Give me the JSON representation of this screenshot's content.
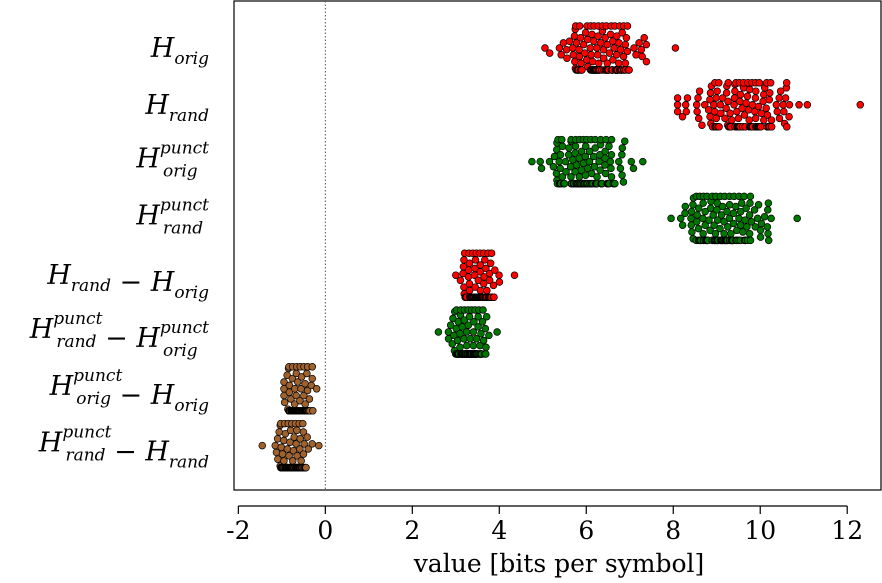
{
  "chart_data": {
    "type": "scatter",
    "subtype": "beeswarm",
    "orientation": "horizontal",
    "title": "",
    "xlabel": "value [bits per symbol]",
    "ylabel": "",
    "xlim": [
      -2.1,
      12.8
    ],
    "xticks": [
      -2,
      0,
      2,
      4,
      6,
      8,
      10,
      12
    ],
    "xtick_labels": [
      "-2",
      "0",
      "2",
      "4",
      "6",
      "8",
      "10",
      "12"
    ],
    "reference_line": {
      "x": 0,
      "style": "dotted",
      "color": "#555555"
    },
    "grid": false,
    "legend": "none",
    "series": [
      {
        "parts": [
          {
            "t": "H",
            "sub": "orig"
          }
        ],
        "color": "#ff0000",
        "center": 6.35,
        "spread": 0.45,
        "min": 5.05,
        "max": 8.05,
        "n": 150
      },
      {
        "parts": [
          {
            "t": "H",
            "sub": "rand"
          }
        ],
        "color": "#ff0000",
        "center": 9.6,
        "spread": 0.6,
        "min": 8.1,
        "max": 12.3,
        "n": 150
      },
      {
        "parts": [
          {
            "t": "H",
            "sub": "orig",
            "sup": "punct"
          }
        ],
        "color": "#007700",
        "center": 6.0,
        "spread": 0.42,
        "min": 4.75,
        "max": 7.3,
        "n": 150
      },
      {
        "parts": [
          {
            "t": "H",
            "sub": "rand",
            "sup": "punct"
          }
        ],
        "color": "#007700",
        "center": 9.15,
        "spread": 0.48,
        "min": 7.95,
        "max": 10.85,
        "n": 150
      },
      {
        "parts": [
          {
            "t": "H",
            "sub": "rand"
          },
          {
            "t": " − "
          },
          {
            "t": "H",
            "sub": "orig"
          }
        ],
        "color": "#ff0000",
        "center": 3.5,
        "spread": 0.2,
        "min": 3.0,
        "max": 4.35,
        "n": 150
      },
      {
        "parts": [
          {
            "t": "H",
            "sub": "rand",
            "sup": "punct"
          },
          {
            "t": " − "
          },
          {
            "t": "H",
            "sub": "orig",
            "sup": "punct"
          }
        ],
        "color": "#007700",
        "center": 3.3,
        "spread": 0.2,
        "min": 2.6,
        "max": 3.95,
        "n": 150
      },
      {
        "parts": [
          {
            "t": "H",
            "sub": "orig",
            "sup": "punct"
          },
          {
            "t": " − "
          },
          {
            "t": "H",
            "sub": "orig"
          }
        ],
        "color": "#a0622d",
        "center": -0.6,
        "spread": 0.14,
        "min": -0.95,
        "max": -0.2,
        "n": 150
      },
      {
        "parts": [
          {
            "t": "H",
            "sub": "rand",
            "sup": "punct"
          },
          {
            "t": " − "
          },
          {
            "t": "H",
            "sub": "rand"
          }
        ],
        "color": "#a0622d",
        "center": -0.75,
        "spread": 0.2,
        "min": -1.45,
        "max": -0.15,
        "n": 150
      }
    ]
  }
}
